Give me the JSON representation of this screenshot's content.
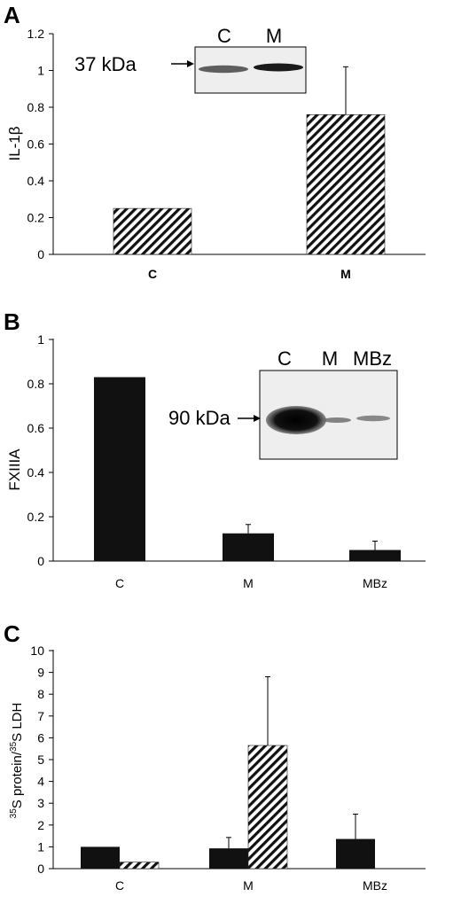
{
  "panels": [
    {
      "letter": "A",
      "chart_data": {
        "type": "bar",
        "ylabel": "IL-1β",
        "ylim": [
          0,
          1.2
        ],
        "yticks": [
          0,
          0.2,
          0.4,
          0.6,
          0.8,
          1,
          1.2
        ],
        "categories": [
          "C",
          "M"
        ],
        "series": [
          {
            "fill": "hatch",
            "values": [
              0.25,
              0.76
            ],
            "errors": [
              0,
              0.26
            ]
          }
        ]
      },
      "inset": {
        "marker": "37 kDa",
        "lanes": [
          "C",
          "M"
        ]
      }
    },
    {
      "letter": "B",
      "chart_data": {
        "type": "bar",
        "ylabel": "FXIIIA",
        "ylim": [
          0,
          1
        ],
        "yticks": [
          0,
          0.2,
          0.4,
          0.6,
          0.8,
          1
        ],
        "categories": [
          "C",
          "M",
          "MBz"
        ],
        "series": [
          {
            "fill": "black",
            "values": [
              0.83,
              0.125,
              0.05
            ],
            "errors": [
              0,
              0.04,
              0.04
            ]
          }
        ]
      },
      "inset": {
        "marker": "90 kDa",
        "lanes": [
          "C",
          "M",
          "MBz"
        ]
      }
    },
    {
      "letter": "C",
      "chart_data": {
        "type": "bar",
        "ylabel": "35S protein/35S LDH",
        "ylim": [
          0,
          10
        ],
        "yticks": [
          0,
          1,
          2,
          3,
          4,
          5,
          6,
          7,
          8,
          9,
          10
        ],
        "categories": [
          "C",
          "M",
          "MBz"
        ],
        "series": [
          {
            "fill": "black",
            "values": [
              1.0,
              0.93,
              1.36
            ],
            "errors": [
              0,
              0.5,
              1.14
            ]
          },
          {
            "fill": "hatch",
            "values": [
              0.3,
              5.65,
              null
            ],
            "errors": [
              0,
              3.15,
              0
            ]
          }
        ]
      }
    }
  ],
  "colors": {
    "bar": "#111111",
    "axis": "#000000",
    "blot_bg": "#eeeeee"
  }
}
